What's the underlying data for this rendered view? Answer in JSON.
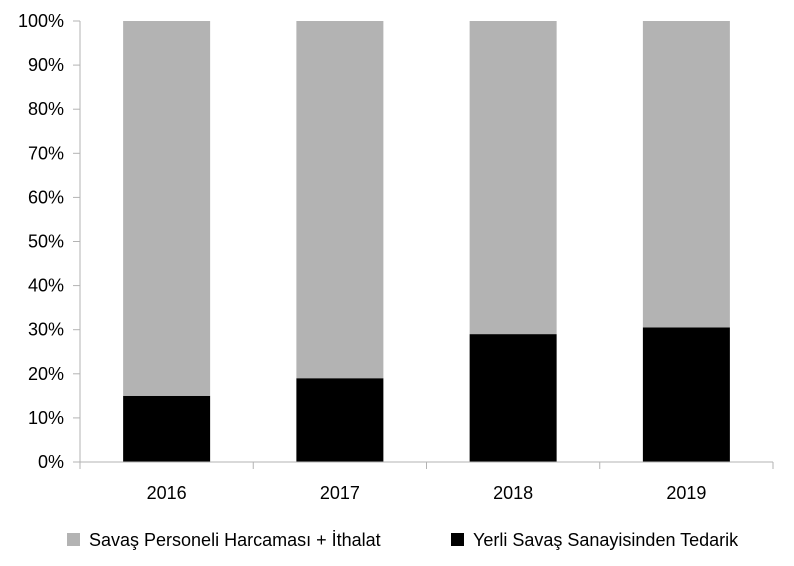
{
  "chart_data": {
    "type": "bar",
    "stacked": true,
    "percent": true,
    "categories": [
      "2016",
      "2017",
      "2018",
      "2019"
    ],
    "series": [
      {
        "name": "Yerli Savaş Sanayisinden Tedarik",
        "color": "#000000",
        "values": [
          15,
          19,
          29,
          30.5
        ]
      },
      {
        "name": "Savaş Personeli Harcaması + İthalat",
        "color": "#b3b3b3",
        "values": [
          85,
          81,
          71,
          69.5
        ]
      }
    ],
    "ylim": [
      0,
      100
    ],
    "yticks": [
      "0%",
      "10%",
      "20%",
      "30%",
      "40%",
      "50%",
      "60%",
      "70%",
      "80%",
      "90%",
      "100%"
    ],
    "grid": false,
    "legend_position": "bottom",
    "legend_order": [
      "Savaş Personeli Harcaması + İthalat",
      "Yerli Savaş Sanayisinden Tedarik"
    ],
    "title": "",
    "xlabel": "",
    "ylabel": ""
  }
}
